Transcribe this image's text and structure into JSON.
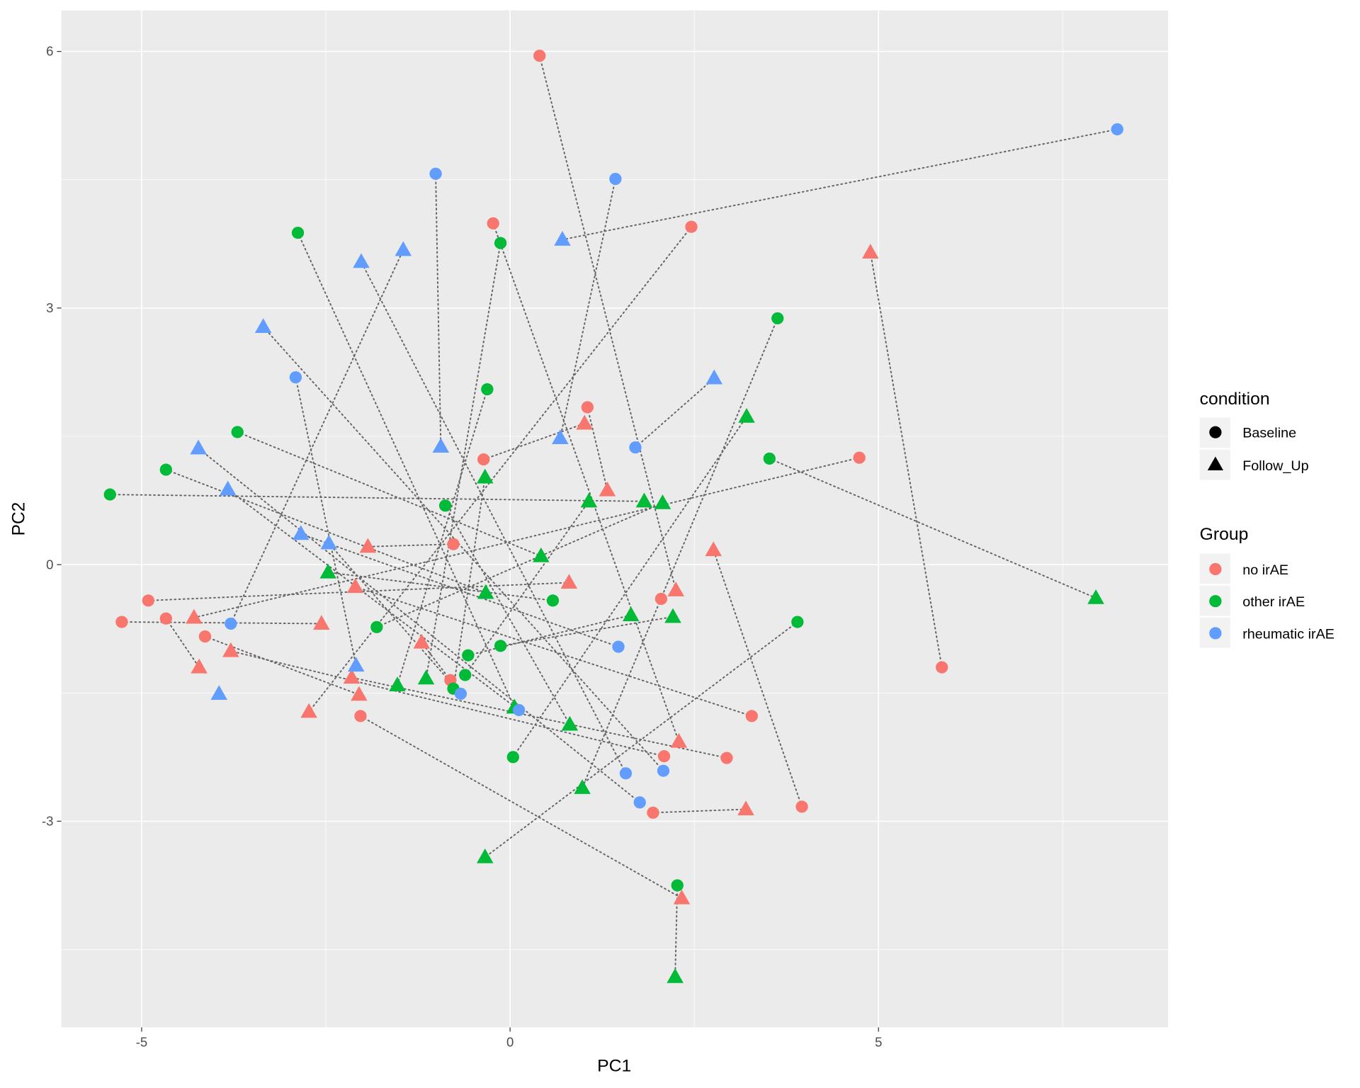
{
  "chart_data": {
    "type": "scatter",
    "title": "",
    "xlabel": "PC1",
    "ylabel": "PC2",
    "xlim": [
      -6.09,
      8.93
    ],
    "ylim": [
      -5.41,
      6.48
    ],
    "xticks": [
      -5,
      0,
      5
    ],
    "xtick_labels": [
      "-5",
      "0",
      "5"
    ],
    "yticks": [
      6,
      3,
      0,
      -3
    ],
    "ytick_labels": [
      "6",
      "3",
      "0",
      "-3"
    ],
    "grid": true,
    "legend_position": "right",
    "legends": {
      "condition": {
        "title": "condition",
        "entries": [
          {
            "label": "Baseline",
            "shape": "circle"
          },
          {
            "label": "Follow_Up",
            "shape": "triangle"
          }
        ]
      },
      "group": {
        "title": "Group",
        "entries": [
          {
            "label": "no irAE",
            "color": "#F8766D"
          },
          {
            "label": "other irAE",
            "color": "#00BA38"
          },
          {
            "label": "rheumatic irAE",
            "color": "#619CFF"
          }
        ]
      }
    },
    "connector": "dotted line joins Baseline and Follow_Up of the same subject",
    "subjects": [
      {
        "group": "no irAE",
        "baseline": [
          5.86,
          -1.2
        ],
        "follow_up": [
          4.89,
          3.65
        ]
      },
      {
        "group": "no irAE",
        "baseline": [
          0.4,
          5.95
        ],
        "follow_up": [
          2.25,
          -0.3
        ]
      },
      {
        "group": "no irAE",
        "baseline": [
          -0.23,
          3.99
        ],
        "follow_up": [
          2.29,
          -2.07
        ]
      },
      {
        "group": "no irAE",
        "baseline": [
          2.46,
          3.95
        ],
        "follow_up": [
          -2.73,
          -1.72
        ]
      },
      {
        "group": "no irAE",
        "baseline": [
          4.74,
          1.25
        ],
        "follow_up": [
          -4.29,
          -0.62
        ]
      },
      {
        "group": "no irAE",
        "baseline": [
          3.96,
          -2.83
        ],
        "follow_up": [
          2.76,
          0.17
        ]
      },
      {
        "group": "no irAE",
        "baseline": [
          1.94,
          -2.9
        ],
        "follow_up": [
          3.2,
          -2.86
        ]
      },
      {
        "group": "no irAE",
        "baseline": [
          -4.91,
          -0.42
        ],
        "follow_up": [
          0.8,
          -0.21
        ]
      },
      {
        "group": "no irAE",
        "baseline": [
          -5.27,
          -0.67
        ],
        "follow_up": [
          -2.56,
          -0.69
        ]
      },
      {
        "group": "no irAE",
        "baseline": [
          3.28,
          -1.77
        ],
        "follow_up": [
          -2.1,
          -0.26
        ]
      },
      {
        "group": "no irAE",
        "baseline": [
          2.94,
          -2.26
        ],
        "follow_up": [
          -2.15,
          -1.32
        ]
      },
      {
        "group": "no irAE",
        "baseline": [
          2.09,
          -2.24
        ],
        "follow_up": [
          -3.79,
          -1.01
        ]
      },
      {
        "group": "no irAE",
        "baseline": [
          -2.03,
          -1.77
        ],
        "follow_up": [
          2.33,
          -3.9
        ]
      },
      {
        "group": "no irAE",
        "baseline": [
          -4.67,
          -0.63
        ],
        "follow_up": [
          -4.22,
          -1.2
        ]
      },
      {
        "group": "no irAE",
        "baseline": [
          -4.14,
          -0.84
        ],
        "follow_up": [
          -2.05,
          -1.52
        ]
      },
      {
        "group": "no irAE",
        "baseline": [
          -0.77,
          0.24
        ],
        "follow_up": [
          -1.93,
          0.21
        ]
      },
      {
        "group": "no irAE",
        "baseline": [
          -0.81,
          -1.35
        ],
        "follow_up": [
          -1.2,
          -0.91
        ]
      },
      {
        "group": "no irAE",
        "baseline": [
          -0.36,
          1.23
        ],
        "follow_up": [
          1.01,
          1.65
        ]
      },
      {
        "group": "no irAE",
        "baseline": [
          1.05,
          1.84
        ],
        "follow_up": [
          1.32,
          0.87
        ]
      },
      {
        "group": "no irAE",
        "baseline": [
          2.05,
          -0.4
        ],
        "follow_up": null
      },
      {
        "group": "other irAE",
        "baseline": [
          2.27,
          -3.75
        ],
        "follow_up": [
          2.24,
          -4.82
        ]
      },
      {
        "group": "other irAE",
        "baseline": [
          3.52,
          1.24
        ],
        "follow_up": [
          7.95,
          -0.39
        ]
      },
      {
        "group": "other irAE",
        "baseline": [
          3.9,
          -0.67
        ],
        "follow_up": [
          -0.34,
          -3.42
        ]
      },
      {
        "group": "other irAE",
        "baseline": [
          3.63,
          2.88
        ],
        "follow_up": [
          0.98,
          -2.61
        ]
      },
      {
        "group": "other irAE",
        "baseline": [
          -5.43,
          0.82
        ],
        "follow_up": [
          1.82,
          0.74
        ]
      },
      {
        "group": "other irAE",
        "baseline": [
          -2.88,
          3.88
        ],
        "follow_up": [
          0.06,
          -1.67
        ]
      },
      {
        "group": "other irAE",
        "baseline": [
          -0.13,
          3.76
        ],
        "follow_up": [
          -1.14,
          -1.33
        ]
      },
      {
        "group": "other irAE",
        "baseline": [
          -3.7,
          1.55
        ],
        "follow_up": [
          0.42,
          0.1
        ]
      },
      {
        "group": "other irAE",
        "baseline": [
          -4.67,
          1.11
        ],
        "follow_up": [
          -0.33,
          -0.33
        ]
      },
      {
        "group": "other irAE",
        "baseline": [
          -0.31,
          2.05
        ],
        "follow_up": [
          -1.53,
          -1.41
        ]
      },
      {
        "group": "other irAE",
        "baseline": [
          -0.88,
          0.69
        ],
        "follow_up": [
          0.81,
          -1.87
        ]
      },
      {
        "group": "other irAE",
        "baseline": [
          0.58,
          -0.42
        ],
        "follow_up": [
          -2.47,
          -0.09
        ]
      },
      {
        "group": "other irAE",
        "baseline": [
          -1.81,
          -0.73
        ],
        "follow_up": [
          2.07,
          0.72
        ]
      },
      {
        "group": "other irAE",
        "baseline": [
          -0.13,
          -0.95
        ],
        "follow_up": [
          2.21,
          -0.61
        ]
      },
      {
        "group": "other irAE",
        "baseline": [
          -0.57,
          -1.06
        ],
        "follow_up": [
          1.64,
          -0.59
        ]
      },
      {
        "group": "other irAE",
        "baseline": [
          -0.61,
          -1.29
        ],
        "follow_up": [
          1.07,
          0.74
        ]
      },
      {
        "group": "other irAE",
        "baseline": [
          -0.77,
          -1.45
        ],
        "follow_up": [
          -0.34,
          1.02
        ]
      },
      {
        "group": "other irAE",
        "baseline": [
          0.04,
          -2.25
        ],
        "follow_up": [
          3.21,
          1.73
        ]
      },
      {
        "group": "rheumatic irAE",
        "baseline": [
          -3.79,
          -0.69
        ],
        "follow_up": [
          -1.45,
          3.68
        ]
      },
      {
        "group": "rheumatic irAE",
        "baseline": [
          1.57,
          -2.44
        ],
        "follow_up": [
          -2.02,
          3.54
        ]
      },
      {
        "group": "rheumatic irAE",
        "baseline": [
          -1.01,
          4.57
        ],
        "follow_up": [
          -0.94,
          1.38
        ]
      },
      {
        "group": "rheumatic irAE",
        "baseline": [
          1.43,
          4.51
        ],
        "follow_up": [
          0.68,
          1.48
        ]
      },
      {
        "group": "rheumatic irAE",
        "baseline": [
          -2.91,
          2.19
        ],
        "follow_up": [
          -2.09,
          -1.18
        ]
      },
      {
        "group": "rheumatic irAE",
        "baseline": [
          1.7,
          1.37
        ],
        "follow_up": [
          2.77,
          2.18
        ]
      },
      {
        "group": "rheumatic irAE",
        "baseline": [
          8.24,
          5.09
        ],
        "follow_up": [
          0.71,
          3.8
        ]
      },
      {
        "group": "rheumatic irAE",
        "baseline": [
          1.47,
          -0.96
        ],
        "follow_up": [
          -2.84,
          0.36
        ]
      },
      {
        "group": "rheumatic irAE",
        "baseline": [
          -0.67,
          -1.51
        ],
        "follow_up": [
          -2.46,
          0.25
        ]
      },
      {
        "group": "rheumatic irAE",
        "baseline": [
          0.12,
          -1.7
        ],
        "follow_up": [
          -3.83,
          0.88
        ]
      },
      {
        "group": "rheumatic irAE",
        "baseline": [
          2.08,
          -2.41
        ],
        "follow_up": [
          -3.35,
          2.78
        ]
      },
      {
        "group": "rheumatic irAE",
        "baseline": [
          1.76,
          -2.78
        ],
        "follow_up": [
          -4.23,
          1.36
        ]
      },
      {
        "group": "rheumatic irAE",
        "baseline": null,
        "follow_up": [
          -3.95,
          -1.51
        ]
      }
    ]
  }
}
